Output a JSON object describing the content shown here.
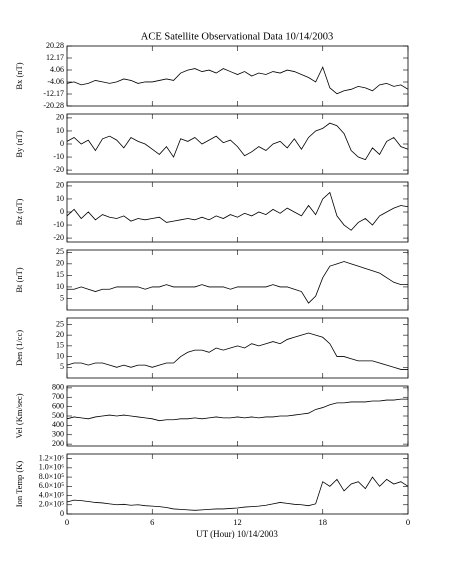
{
  "title": "ACE Satellite Observational Data   10/14/2003",
  "x_label": "UT (Hour)   10/14/2003",
  "chart_data": [
    {
      "type": "line",
      "ylabel": "Bx (nT)",
      "color": "#000000",
      "x": [
        0,
        0.5,
        1,
        1.5,
        2,
        2.5,
        3,
        3.5,
        4,
        4.5,
        5,
        5.5,
        6,
        6.5,
        7,
        7.5,
        8,
        8.5,
        9,
        9.5,
        10,
        10.5,
        11,
        11.5,
        12,
        12.5,
        13,
        13.5,
        14,
        14.5,
        15,
        15.5,
        16,
        16.5,
        17,
        17.5,
        18,
        18.5,
        19,
        19.5,
        20,
        20.5,
        21,
        21.5,
        22,
        22.5,
        23,
        23.5,
        24
      ],
      "values": [
        -5,
        -4,
        -6,
        -5,
        -3,
        -4,
        -5,
        -4,
        -2,
        -3,
        -5,
        -4,
        -4,
        -3,
        -2,
        -3,
        2,
        4,
        5,
        3,
        4,
        2,
        5,
        3,
        1,
        3,
        0,
        2,
        1,
        3,
        2,
        4,
        3,
        1,
        -1,
        -4,
        6,
        -8,
        -12,
        -10,
        -9,
        -7,
        -8,
        -10,
        -6,
        -5,
        -7,
        -6,
        -9
      ],
      "xlim": [
        0,
        24
      ],
      "ylim": [
        -20.28,
        20.28
      ],
      "yticks": [
        -20.28,
        -12.17,
        -4.06,
        4.06,
        12.17,
        20.28
      ]
    },
    {
      "type": "line",
      "ylabel": "By (nT)",
      "color": "#000000",
      "x": [
        0,
        0.5,
        1,
        1.5,
        2,
        2.5,
        3,
        3.5,
        4,
        4.5,
        5,
        5.5,
        6,
        6.5,
        7,
        7.5,
        8,
        8.5,
        9,
        9.5,
        10,
        10.5,
        11,
        11.5,
        12,
        12.5,
        13,
        13.5,
        14,
        14.5,
        15,
        15.5,
        16,
        16.5,
        17,
        17.5,
        18,
        18.5,
        19,
        19.5,
        20,
        20.5,
        21,
        21.5,
        22,
        22.5,
        23,
        23.5,
        24
      ],
      "values": [
        2,
        5,
        0,
        3,
        -5,
        4,
        6,
        3,
        -3,
        5,
        2,
        0,
        -4,
        -8,
        -2,
        -10,
        4,
        2,
        5,
        0,
        3,
        6,
        1,
        3,
        -2,
        -9,
        -6,
        -2,
        -5,
        0,
        2,
        -3,
        4,
        -4,
        5,
        10,
        12,
        16,
        14,
        8,
        -5,
        -10,
        -12,
        -3,
        -8,
        2,
        5,
        -2,
        -4
      ],
      "xlim": [
        0,
        24
      ],
      "ylim": [
        -23,
        23
      ],
      "yticks": [
        -20,
        -10,
        0,
        10,
        20
      ]
    },
    {
      "type": "line",
      "ylabel": "Bz (nT)",
      "color": "#000000",
      "x": [
        0,
        0.5,
        1,
        1.5,
        2,
        2.5,
        3,
        3.5,
        4,
        4.5,
        5,
        5.5,
        6,
        6.5,
        7,
        7.5,
        8,
        8.5,
        9,
        9.5,
        10,
        10.5,
        11,
        11.5,
        12,
        12.5,
        13,
        13.5,
        14,
        14.5,
        15,
        15.5,
        16,
        16.5,
        17,
        17.5,
        18,
        18.5,
        19,
        19.5,
        20,
        20.5,
        21,
        21.5,
        22,
        22.5,
        23,
        23.5,
        24
      ],
      "values": [
        -3,
        2,
        -5,
        0,
        -6,
        -2,
        -4,
        -5,
        -3,
        -7,
        -5,
        -6,
        -5,
        -4,
        -8,
        -7,
        -6,
        -5,
        -6,
        -4,
        -6,
        -3,
        -5,
        -2,
        -4,
        -1,
        -3,
        0,
        -2,
        2,
        -1,
        3,
        0,
        -3,
        5,
        -2,
        10,
        15,
        -3,
        -10,
        -14,
        -8,
        -5,
        -10,
        -3,
        0,
        3,
        5,
        4
      ],
      "xlim": [
        0,
        24
      ],
      "ylim": [
        -23,
        23
      ],
      "yticks": [
        -20,
        -10,
        0,
        10,
        20
      ]
    },
    {
      "type": "line",
      "ylabel": "Bt (nT)",
      "color": "#000000",
      "x": [
        0,
        0.5,
        1,
        1.5,
        2,
        2.5,
        3,
        3.5,
        4,
        4.5,
        5,
        5.5,
        6,
        6.5,
        7,
        7.5,
        8,
        8.5,
        9,
        9.5,
        10,
        10.5,
        11,
        11.5,
        12,
        12.5,
        13,
        13.5,
        14,
        14.5,
        15,
        15.5,
        16,
        16.5,
        17,
        17.5,
        18,
        18.5,
        19,
        19.5,
        20,
        20.5,
        21,
        21.5,
        22,
        22.5,
        23,
        23.5,
        24
      ],
      "values": [
        9,
        9,
        10,
        9,
        8,
        9,
        9,
        10,
        10,
        10,
        10,
        9,
        10,
        10,
        11,
        10,
        10,
        10,
        10,
        11,
        10,
        10,
        10,
        9,
        10,
        10,
        10,
        10,
        10,
        11,
        10,
        10,
        9,
        8,
        3,
        6,
        14,
        19,
        20,
        21,
        20,
        19,
        18,
        17,
        16,
        14,
        12,
        11,
        11
      ],
      "xlim": [
        0,
        24
      ],
      "ylim": [
        0,
        26
      ],
      "yticks": [
        5,
        10,
        15,
        20,
        25
      ]
    },
    {
      "type": "line",
      "ylabel": "Den (1/cc)",
      "color": "#000000",
      "x": [
        0,
        0.5,
        1,
        1.5,
        2,
        2.5,
        3,
        3.5,
        4,
        4.5,
        5,
        5.5,
        6,
        6.5,
        7,
        7.5,
        8,
        8.5,
        9,
        9.5,
        10,
        10.5,
        11,
        11.5,
        12,
        12.5,
        13,
        13.5,
        14,
        14.5,
        15,
        15.5,
        16,
        16.5,
        17,
        17.5,
        18,
        18.5,
        19,
        19.5,
        20,
        20.5,
        21,
        21.5,
        22,
        22.5,
        23,
        23.5,
        24
      ],
      "values": [
        6,
        7,
        7,
        6,
        7,
        7,
        6,
        5,
        6,
        5,
        6,
        6,
        5,
        6,
        7,
        7,
        10,
        12,
        13,
        13,
        12,
        14,
        13,
        14,
        15,
        14,
        16,
        15,
        16,
        17,
        16,
        18,
        19,
        20,
        21,
        20,
        19,
        16,
        10,
        10,
        9,
        8,
        8,
        8,
        7,
        6,
        5,
        4,
        4
      ],
      "xlim": [
        0,
        24
      ],
      "ylim": [
        0,
        28
      ],
      "yticks": [
        5,
        10,
        15,
        20,
        25
      ]
    },
    {
      "type": "line",
      "ylabel": "Vel (Km/sec)",
      "color": "#000000",
      "x": [
        0,
        0.5,
        1,
        1.5,
        2,
        2.5,
        3,
        3.5,
        4,
        4.5,
        5,
        5.5,
        6,
        6.5,
        7,
        7.5,
        8,
        8.5,
        9,
        9.5,
        10,
        10.5,
        11,
        11.5,
        12,
        12.5,
        13,
        13.5,
        14,
        14.5,
        15,
        15.5,
        16,
        16.5,
        17,
        17.5,
        18,
        18.5,
        19,
        19.5,
        20,
        20.5,
        21,
        21.5,
        22,
        22.5,
        23,
        23.5,
        24
      ],
      "values": [
        470,
        490,
        480,
        470,
        490,
        500,
        510,
        500,
        510,
        500,
        490,
        480,
        470,
        450,
        460,
        460,
        470,
        470,
        480,
        470,
        480,
        490,
        480,
        480,
        490,
        480,
        490,
        480,
        490,
        490,
        500,
        500,
        510,
        520,
        530,
        570,
        590,
        620,
        640,
        640,
        650,
        650,
        650,
        660,
        660,
        670,
        670,
        680,
        680
      ],
      "xlim": [
        0,
        24
      ],
      "ylim": [
        180,
        820
      ],
      "yticks": [
        200,
        300,
        400,
        500,
        600,
        700,
        800
      ]
    },
    {
      "type": "line",
      "ylabel": "Ion Temp (K)",
      "color": "#000000",
      "x": [
        0,
        0.5,
        1,
        1.5,
        2,
        2.5,
        3,
        3.5,
        4,
        4.5,
        5,
        5.5,
        6,
        6.5,
        7,
        7.5,
        8,
        8.5,
        9,
        9.5,
        10,
        10.5,
        11,
        11.5,
        12,
        12.5,
        13,
        13.5,
        14,
        14.5,
        15,
        15.5,
        16,
        16.5,
        17,
        17.5,
        18,
        18.5,
        19,
        19.5,
        20,
        20.5,
        21,
        21.5,
        22,
        22.5,
        23,
        23.5,
        24
      ],
      "values": [
        260000,
        300000,
        290000,
        270000,
        250000,
        240000,
        220000,
        200000,
        210000,
        190000,
        200000,
        180000,
        170000,
        160000,
        140000,
        110000,
        100000,
        90000,
        80000,
        90000,
        100000,
        110000,
        110000,
        120000,
        130000,
        150000,
        160000,
        170000,
        190000,
        220000,
        250000,
        230000,
        210000,
        200000,
        180000,
        220000,
        700000,
        600000,
        750000,
        500000,
        650000,
        700000,
        550000,
        800000,
        600000,
        750000,
        650000,
        700000,
        600000
      ],
      "xlim": [
        0,
        24
      ],
      "ylim": [
        0,
        1300000
      ],
      "yticks": [
        0,
        {
          "value": 200000,
          "label": "2.0×10⁵"
        },
        {
          "value": 400000,
          "label": "4.0×10⁵"
        },
        {
          "value": 600000,
          "label": "6.0×10⁵"
        },
        {
          "value": 800000,
          "label": "8.0×10⁵"
        },
        {
          "value": 1000000,
          "label": "1.0×10⁶"
        },
        {
          "value": 1200000,
          "label": "1.2×10⁶"
        }
      ],
      "xticks": [
        0,
        6,
        12,
        18,
        {
          "value": 24,
          "label": "0"
        }
      ]
    }
  ]
}
